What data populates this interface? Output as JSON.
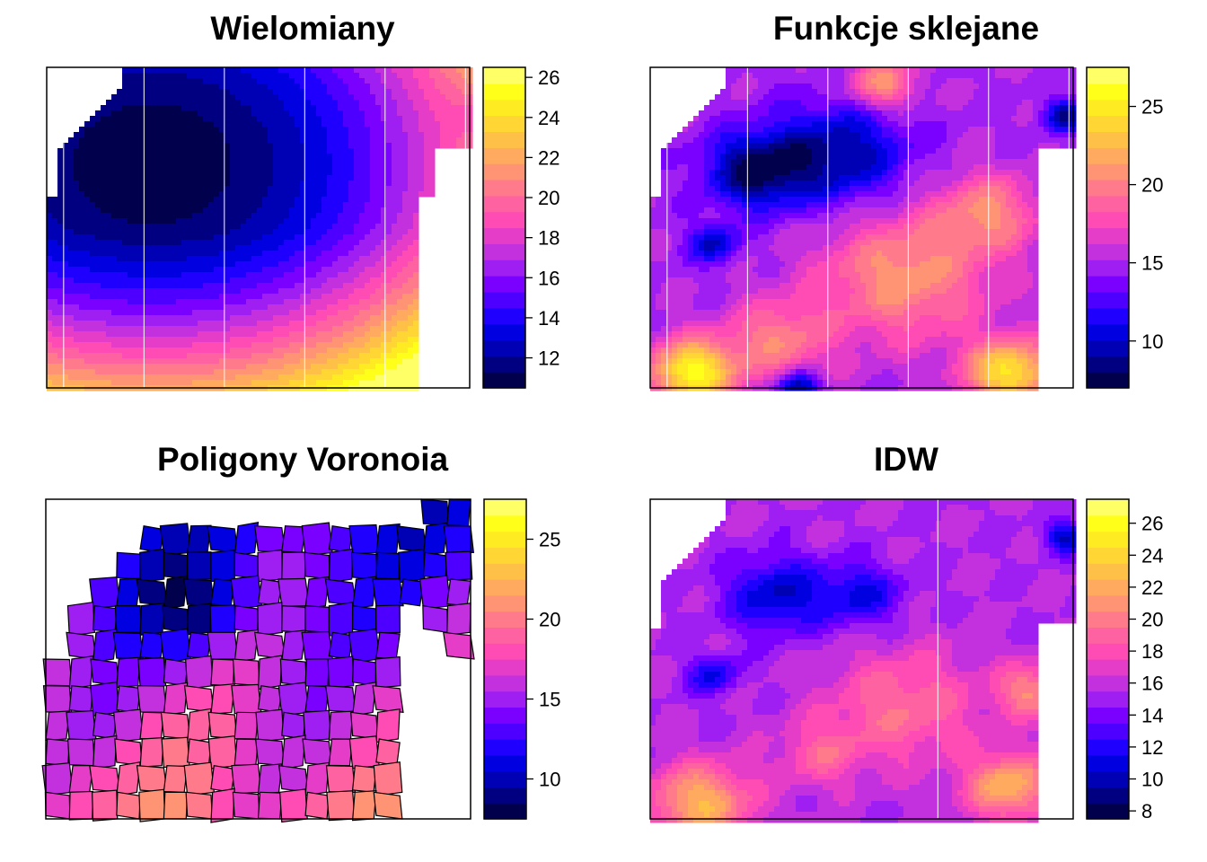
{
  "palette": [
    "#00004C",
    "#000080",
    "#0000B5",
    "#0000E0",
    "#1F00FF",
    "#4D00FF",
    "#7A00FF",
    "#9F1EF2",
    "#C330DD",
    "#E63DC8",
    "#FF4CB4",
    "#FF62A0",
    "#FF7B8B",
    "#FF9474",
    "#FFAA5E",
    "#FFC047",
    "#FFD633",
    "#FFEB22",
    "#FFFF1A",
    "#FFFF66"
  ],
  "panels": [
    {
      "title": "Wielomiany",
      "legend": {
        "min": 10.5,
        "max": 26.5,
        "ticks": [
          "12",
          "14",
          "16",
          "18",
          "20",
          "22",
          "24",
          "26"
        ],
        "tick_values": [
          12,
          14,
          16,
          18,
          20,
          22,
          24,
          26
        ]
      },
      "surface": {
        "type": "poly",
        "center": [
          0.25,
          0.3
        ],
        "min_value": 10.7,
        "weights": [
          17,
          17
        ],
        "quad_y": 6,
        "max_value": 26.3,
        "bump": {
          "x": 1.05,
          "y": 0.15,
          "r": 0.08,
          "value": -2.5
        },
        "vlines": [
          0.04,
          0.23,
          0.42,
          0.61,
          0.8,
          0.99
        ]
      }
    },
    {
      "title": "Funkcje sklejane",
      "legend": {
        "min": 7,
        "max": 27.5,
        "ticks": [
          "10",
          "15",
          "20",
          "25"
        ],
        "tick_values": [
          10,
          15,
          20,
          25
        ]
      },
      "surface": {
        "type": "blobs",
        "base": 15,
        "blobs": [
          [
            0.25,
            0.32,
            0.12,
            -7
          ],
          [
            0.45,
            0.27,
            0.16,
            -6
          ],
          [
            0.15,
            0.55,
            0.06,
            -5
          ],
          [
            0.1,
            0.95,
            0.1,
            11
          ],
          [
            0.85,
            0.95,
            0.1,
            10
          ],
          [
            0.6,
            0.65,
            0.2,
            6
          ],
          [
            0.8,
            0.45,
            0.12,
            5
          ],
          [
            0.55,
            0.05,
            0.08,
            6
          ],
          [
            0.3,
            0.85,
            0.12,
            5
          ],
          [
            0.98,
            0.15,
            0.05,
            -6
          ],
          [
            0.35,
            1.0,
            0.05,
            -7
          ]
        ],
        "vlines": [
          0.04,
          0.23,
          0.42,
          0.61,
          0.8,
          0.99
        ]
      }
    },
    {
      "title": "Poligony Voronoia",
      "legend": {
        "min": 7.5,
        "max": 27.5,
        "ticks": [
          "10",
          "15",
          "20",
          "25"
        ],
        "tick_values": [
          10,
          15,
          20,
          25
        ]
      },
      "surface": {
        "type": "voronoi",
        "base": 15
      }
    },
    {
      "title": "IDW",
      "legend": {
        "min": 7.5,
        "max": 27.5,
        "ticks": [
          "8",
          "10",
          "12",
          "14",
          "16",
          "18",
          "20",
          "22",
          "24",
          "26"
        ],
        "tick_values": [
          8,
          10,
          12,
          14,
          16,
          18,
          20,
          22,
          24,
          26
        ]
      },
      "surface": {
        "type": "blobs",
        "base": 15.5,
        "blobs": [
          [
            0.3,
            0.3,
            0.12,
            -5
          ],
          [
            0.5,
            0.3,
            0.1,
            -4
          ],
          [
            0.15,
            0.55,
            0.06,
            -4
          ],
          [
            0.12,
            0.95,
            0.12,
            7
          ],
          [
            0.85,
            0.9,
            0.1,
            7
          ],
          [
            0.6,
            0.65,
            0.18,
            4
          ],
          [
            0.9,
            0.6,
            0.08,
            5
          ],
          [
            0.4,
            0.8,
            0.1,
            3
          ],
          [
            0.98,
            0.12,
            0.05,
            -5
          ]
        ],
        "vlines": [
          0.68
        ]
      }
    }
  ],
  "chart_data": [
    {
      "type": "heatmap",
      "title": "Wielomiany",
      "colorbar": {
        "min": 10.5,
        "max": 26.5,
        "ticks": [
          12,
          14,
          16,
          18,
          20,
          22,
          24,
          26
        ]
      }
    },
    {
      "type": "heatmap",
      "title": "Funkcje sklejane",
      "colorbar": {
        "min": 7,
        "max": 27.5,
        "ticks": [
          10,
          15,
          20,
          25
        ]
      }
    },
    {
      "type": "heatmap",
      "title": "Poligony Voronoia",
      "colorbar": {
        "min": 7.5,
        "max": 27.5,
        "ticks": [
          10,
          15,
          20,
          25
        ]
      }
    },
    {
      "type": "heatmap",
      "title": "IDW",
      "colorbar": {
        "min": 7.5,
        "max": 27.5,
        "ticks": [
          8,
          10,
          12,
          14,
          16,
          18,
          20,
          22,
          24,
          26
        ]
      }
    }
  ]
}
